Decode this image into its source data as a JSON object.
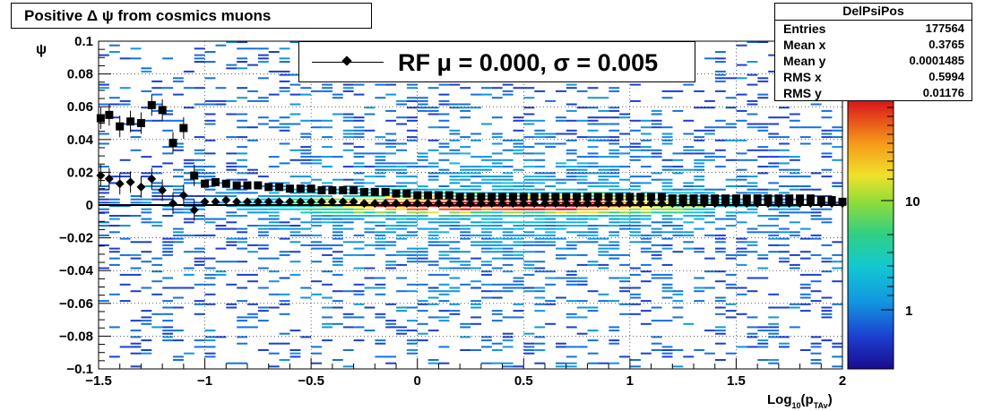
{
  "title": "Positive Δ ψ from cosmics muons",
  "stats": {
    "name": "DelPsiPos",
    "rows": [
      {
        "label": "Entries",
        "value": "177564"
      },
      {
        "label": "Mean x",
        "value": "0.3765"
      },
      {
        "label": "Mean y",
        "value": "0.0001485"
      },
      {
        "label": "RMS x",
        "value": "0.5994"
      },
      {
        "label": "RMS y",
        "value": "0.01176"
      }
    ]
  },
  "legend": {
    "text": "RF μ =  0.000, σ =   0.005"
  },
  "chart_data": {
    "type": "heatmap",
    "title": "Positive Δ ψ from cosmics muons",
    "xlabel": "Log10(pTAv)",
    "ylabel": "ψ",
    "xlim": [
      -1.5,
      2
    ],
    "ylim": [
      -0.1,
      0.1
    ],
    "xticks": [
      "−1.5",
      "−1",
      "−0.5",
      "0",
      "0.5",
      "1",
      "1.5",
      "2"
    ],
    "yticks": [
      "−0.1",
      "−0.08",
      "−0.06",
      "−0.04",
      "−0.02",
      "0",
      "0.02",
      "0.04",
      "0.06",
      "0.08",
      "0.1"
    ],
    "colorbar": {
      "scale": "log",
      "labels": [
        "1",
        "10"
      ]
    },
    "grid": true,
    "series": [
      {
        "marker": "square",
        "x": [
          -1.49,
          -1.45,
          -1.4,
          -1.35,
          -1.3,
          -1.25,
          -1.2,
          -1.15,
          -1.1,
          -1.05,
          -1.0,
          -0.95,
          -0.9,
          -0.85,
          -0.8,
          -0.75,
          -0.7,
          -0.65,
          -0.6,
          -0.55,
          -0.5,
          -0.45,
          -0.4,
          -0.35,
          -0.3,
          -0.25,
          -0.2,
          -0.15,
          -0.1,
          -0.05,
          0.0,
          0.05,
          0.1,
          0.15,
          0.2,
          0.25,
          0.3,
          0.35,
          0.4,
          0.45,
          0.5,
          0.55,
          0.6,
          0.65,
          0.7,
          0.75,
          0.8,
          0.85,
          0.9,
          0.95,
          1.0,
          1.05,
          1.1,
          1.15,
          1.2,
          1.25,
          1.3,
          1.35,
          1.4,
          1.45,
          1.5,
          1.55,
          1.6,
          1.65,
          1.7,
          1.75,
          1.8,
          1.85,
          1.9,
          1.95,
          2.0
        ],
        "y": [
          0.053,
          0.055,
          0.048,
          0.051,
          0.05,
          0.061,
          0.058,
          0.038,
          0.047,
          0.018,
          0.013,
          0.014,
          0.013,
          0.012,
          0.012,
          0.012,
          0.011,
          0.011,
          0.01,
          0.01,
          0.01,
          0.009,
          0.009,
          0.009,
          0.009,
          0.008,
          0.008,
          0.008,
          0.007,
          0.007,
          0.006,
          0.006,
          0.006,
          0.006,
          0.005,
          0.005,
          0.005,
          0.005,
          0.005,
          0.005,
          0.005,
          0.005,
          0.005,
          0.005,
          0.005,
          0.005,
          0.005,
          0.005,
          0.005,
          0.005,
          0.005,
          0.005,
          0.005,
          0.005,
          0.004,
          0.004,
          0.004,
          0.004,
          0.004,
          0.004,
          0.004,
          0.004,
          0.004,
          0.004,
          0.004,
          0.004,
          0.004,
          0.004,
          0.003,
          0.003,
          0.002
        ]
      },
      {
        "marker": "diamond",
        "x": [
          -1.49,
          -1.45,
          -1.4,
          -1.35,
          -1.3,
          -1.25,
          -1.2,
          -1.15,
          -1.1,
          -1.05,
          -1.0,
          -0.95,
          -0.9,
          -0.85,
          -0.8,
          -0.75,
          -0.7,
          -0.65,
          -0.6,
          -0.55,
          -0.5,
          -0.45,
          -0.4,
          -0.35,
          -0.3,
          -0.25,
          -0.2,
          -0.15,
          -0.1,
          -0.05,
          0.0,
          0.05,
          0.1,
          0.15,
          0.2,
          0.25,
          0.3,
          0.35,
          0.4,
          0.45,
          0.5,
          0.55,
          0.6,
          0.65,
          0.7,
          0.75,
          0.8,
          0.85,
          0.9,
          0.95,
          1.0,
          1.05,
          1.1,
          1.15,
          1.2,
          1.25,
          1.3,
          1.35,
          1.4,
          1.45,
          1.5,
          1.55,
          1.6,
          1.65,
          1.7,
          1.75,
          1.8,
          1.85,
          1.9,
          1.95,
          2.0
        ],
        "y": [
          0.018,
          0.016,
          0.013,
          0.014,
          0.011,
          0.016,
          0.009,
          0.001,
          0.006,
          -0.003,
          0.002,
          0.002,
          0.003,
          0.002,
          0.002,
          0.002,
          0.002,
          0.002,
          0.002,
          0.002,
          0.002,
          0.002,
          0.002,
          0.002,
          0.002,
          0.001,
          0.001,
          0.001,
          0.001,
          0.001,
          0.001,
          0.001,
          0.001,
          0.001,
          0.001,
          0.001,
          0.001,
          0.001,
          0.001,
          0.001,
          0.001,
          0.001,
          0.001,
          0.001,
          0.001,
          0.001,
          0.001,
          0.001,
          0.001,
          0.001,
          0.001,
          0.001,
          0.001,
          0.001,
          0.001,
          0.001,
          0.001,
          0.001,
          0.001,
          0.001,
          0.001,
          0.001,
          0.001,
          0.001,
          0.001,
          0.001,
          0.001,
          0.001,
          0.001,
          0.001,
          0.001
        ]
      }
    ]
  }
}
